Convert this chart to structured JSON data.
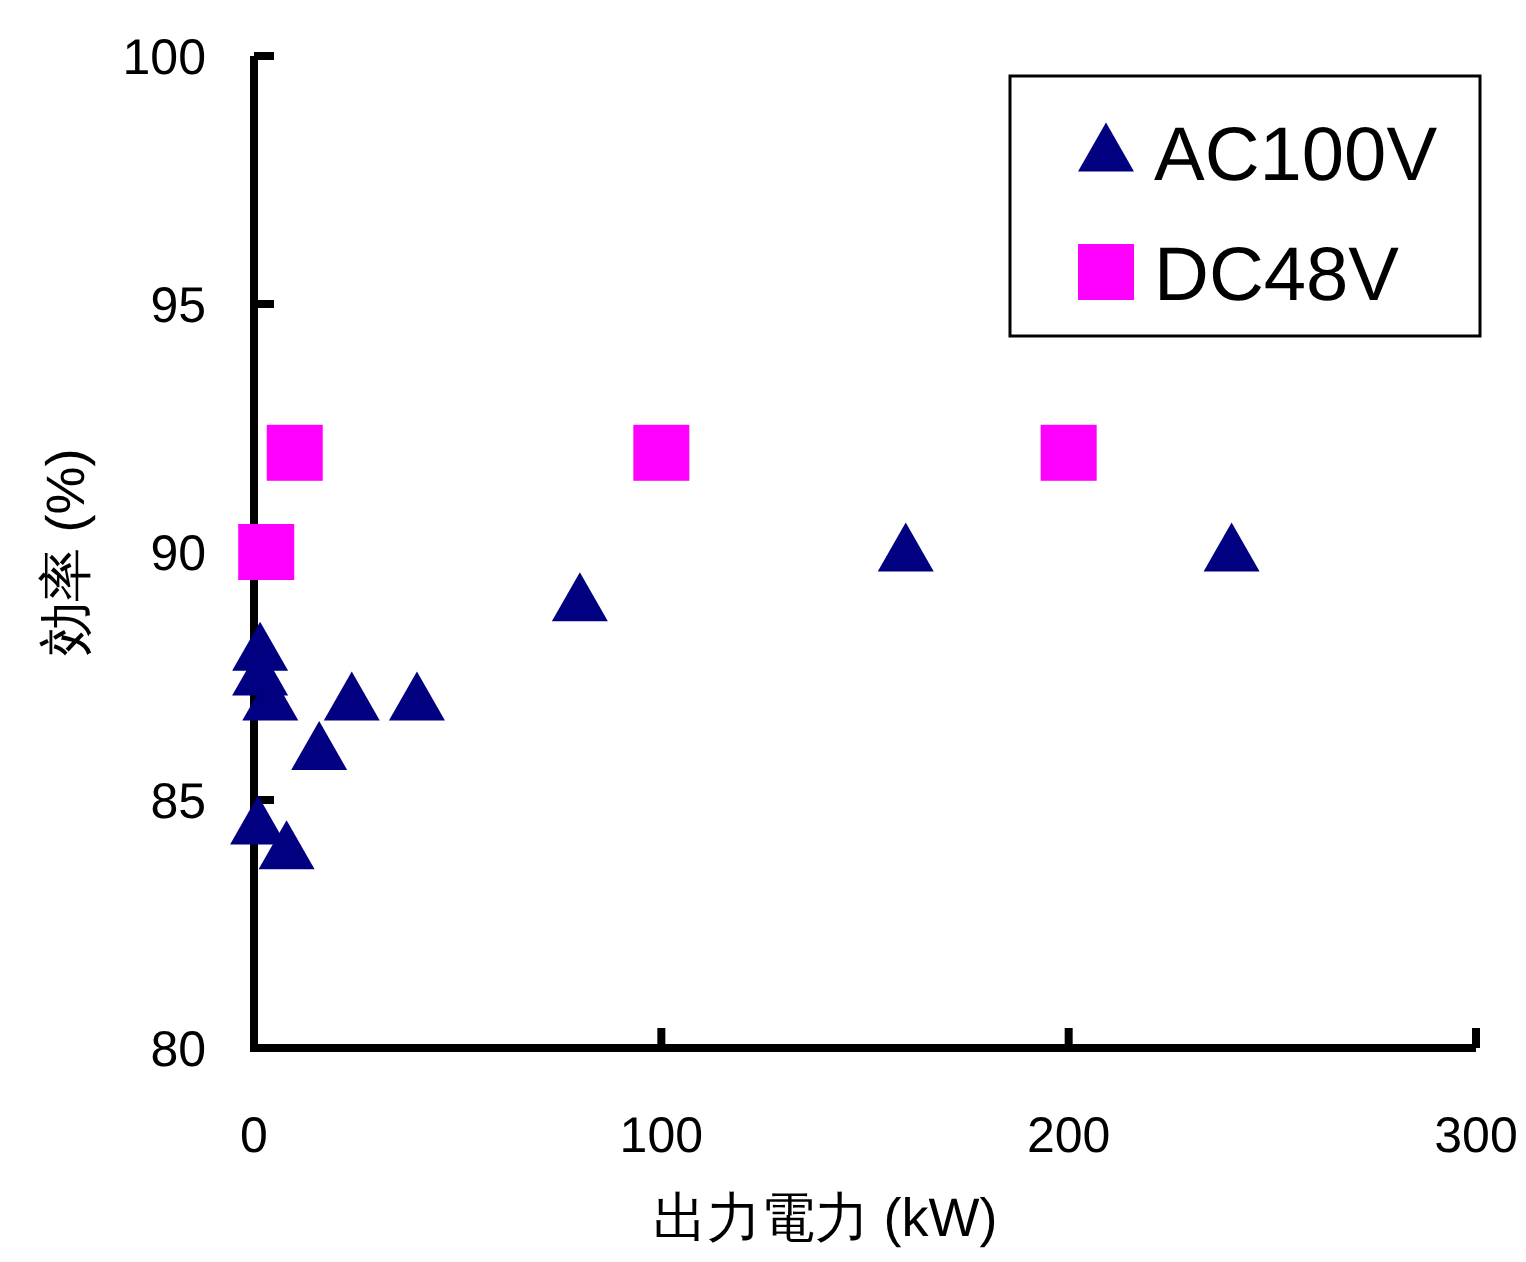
{
  "chart_data": {
    "type": "scatter",
    "xlabel": "出力電力 (kW)",
    "ylabel": "効率 (%)",
    "xlim": [
      0,
      300
    ],
    "ylim": [
      80,
      100
    ],
    "xticks": [
      0,
      100,
      200,
      300
    ],
    "yticks": [
      80,
      85,
      90,
      95,
      100
    ],
    "grid": false,
    "legend": "top right",
    "series": [
      {
        "name": "AC100V",
        "color": "#000080",
        "marker": "triangle",
        "x": [
          1,
          8,
          1.5,
          1.5,
          4,
          16,
          24,
          40,
          80,
          160,
          240
        ],
        "values": [
          84.5,
          84,
          88,
          87.5,
          87,
          86,
          87,
          87,
          89,
          90,
          90
        ]
      },
      {
        "name": "DC48V",
        "color": "#ff00ff",
        "marker": "square",
        "x": [
          3,
          10,
          100,
          200
        ],
        "values": [
          90,
          92,
          92,
          92
        ]
      }
    ]
  }
}
